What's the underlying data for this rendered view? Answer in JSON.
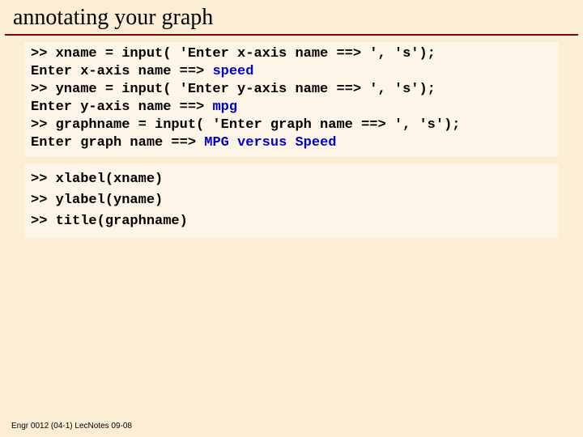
{
  "title": "annotating your graph",
  "codeBlock1": {
    "background_color": "#fdf6e8",
    "font_size": 17,
    "text_color": "#000000",
    "highlight_color": "#0000c8",
    "lines": [
      {
        "prefix": ">> xname = input( 'Enter x-axis name ==> ', 's');",
        "response": null
      },
      {
        "prefix": "Enter x-axis name ==> ",
        "response": "speed"
      },
      {
        "prefix": ">> yname = input( 'Enter y-axis name ==> ', 's');",
        "response": null
      },
      {
        "prefix": "Enter y-axis name ==> ",
        "response": "mpg"
      },
      {
        "prefix": ">> graphname = input( 'Enter graph name ==> ', 's');",
        "response": null
      },
      {
        "prefix": "Enter graph name ==> ",
        "response": "MPG versus Speed"
      }
    ]
  },
  "codeBlock2": {
    "background_color": "#fdf6e8",
    "font_size": 17,
    "text_color": "#000000",
    "lines": [
      ">> xlabel(xname)",
      ">> ylabel(yname)",
      ">> title(graphname)"
    ]
  },
  "footer": "Engr 0012 (04-1) LecNotes 09-08",
  "colors": {
    "page_background": "#fceed4",
    "title_underline": "#8b0000",
    "block_background": "#fdf6e8"
  }
}
